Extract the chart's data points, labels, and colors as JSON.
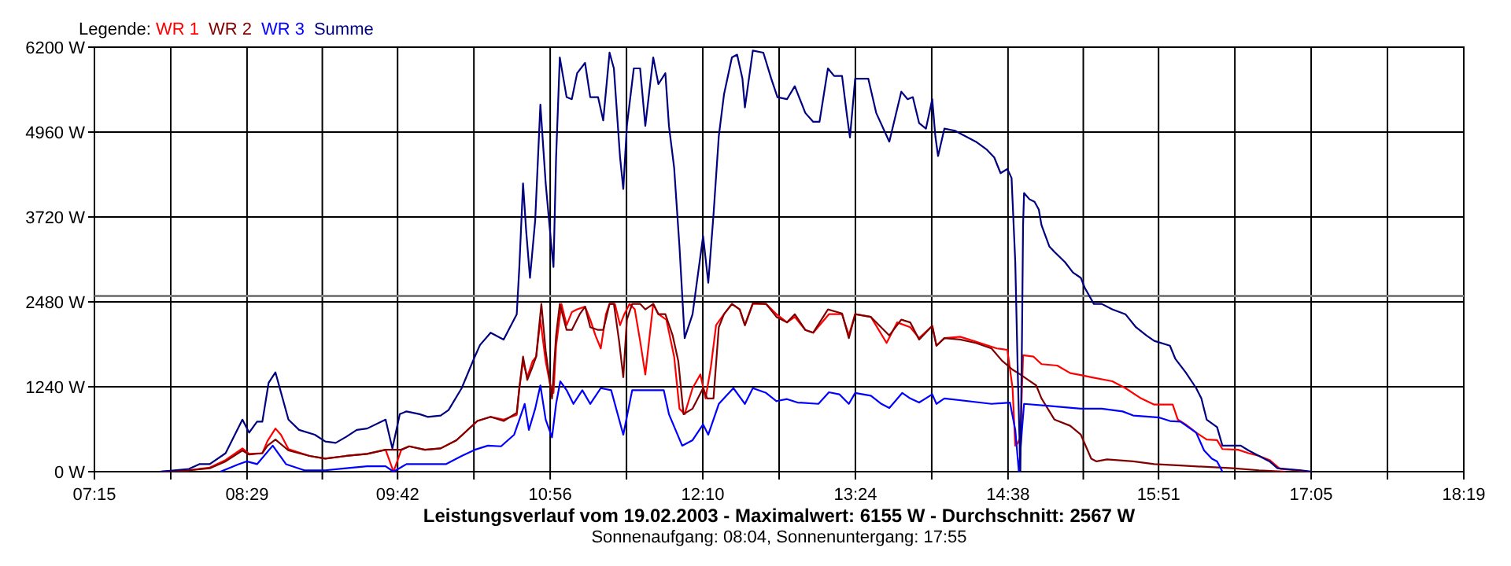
{
  "chart_data": {
    "type": "line",
    "title": "Leistungsverlauf vom 19.02.2003 - Maximalwert: 6155 W - Durchschnitt: 2567 W",
    "subtitle": "Sonnenaufgang: 08:04, Sonnenuntergang: 17:55",
    "legend_title": "Legende:",
    "legend": "top left",
    "grid": true,
    "marker": "none",
    "line_style": "solid",
    "xlim": [
      7.25,
      18.3167
    ],
    "xticks": [
      {
        "value": 7.25,
        "label": "07:15"
      },
      {
        "value": 7.8667,
        "label": null
      },
      {
        "value": 8.4833,
        "label": "08:29"
      },
      {
        "value": 9.0917,
        "label": null
      },
      {
        "value": 9.7,
        "label": "09:42"
      },
      {
        "value": 10.3167,
        "label": null
      },
      {
        "value": 10.9333,
        "label": "10:56"
      },
      {
        "value": 11.55,
        "label": null
      },
      {
        "value": 12.1667,
        "label": "12:10"
      },
      {
        "value": 12.7833,
        "label": null
      },
      {
        "value": 13.4,
        "label": "13:24"
      },
      {
        "value": 14.0167,
        "label": null
      },
      {
        "value": 14.6333,
        "label": "14:38"
      },
      {
        "value": 15.2417,
        "label": null
      },
      {
        "value": 15.85,
        "label": "15:51"
      },
      {
        "value": 16.4667,
        "label": null
      },
      {
        "value": 17.0833,
        "label": "17:05"
      },
      {
        "value": 17.7,
        "label": null
      },
      {
        "value": 18.3167,
        "label": "18:19"
      }
    ],
    "ylim": [
      0,
      6200
    ],
    "yticks": [
      {
        "value": 0,
        "label": "0 W"
      },
      {
        "value": 1240,
        "label": "1240 W"
      },
      {
        "value": 2480,
        "label": "2480 W"
      },
      {
        "value": 3720,
        "label": "3720 W"
      },
      {
        "value": 4960,
        "label": "4960 W"
      },
      {
        "value": 6200,
        "label": "6200 W"
      }
    ],
    "ref_lines": [
      {
        "axis": "y",
        "value": 2567,
        "color": "#808080"
      }
    ],
    "series": [
      {
        "name": "WR 1",
        "color": "#ff0000",
        "x": [
          7.78,
          8.013,
          8.182,
          8.31,
          8.446,
          8.5,
          8.607,
          8.649,
          8.713,
          8.757,
          8.818,
          8.989,
          9.116,
          9.285,
          9.454,
          9.603,
          9.667,
          9.73,
          9.794,
          9.921,
          10.048,
          10.176,
          10.345,
          10.452,
          10.557,
          10.663,
          10.684,
          10.714,
          10.748,
          10.79,
          10.82,
          10.854,
          10.897,
          10.939,
          10.96,
          10.981,
          11.024,
          11.066,
          11.108,
          11.151,
          11.215,
          11.257,
          11.299,
          11.342,
          11.384,
          11.413,
          11.456,
          11.498,
          11.532,
          11.575,
          11.617,
          11.66,
          11.702,
          11.766,
          11.808,
          11.872,
          11.935,
          11.978,
          12.02,
          12.084,
          12.147,
          12.189,
          12.232,
          12.274,
          12.338,
          12.402,
          12.465,
          12.507,
          12.571,
          12.678,
          12.762,
          12.847,
          12.91,
          12.995,
          13.059,
          13.186,
          13.292,
          13.347,
          13.398,
          13.525,
          13.652,
          13.737,
          13.843,
          13.915,
          14.021,
          14.055,
          14.119,
          14.246,
          14.373,
          14.543,
          14.628,
          14.67,
          14.692,
          14.713,
          14.733,
          14.755,
          14.84,
          14.904,
          15.031,
          15.136,
          15.222,
          15.306,
          15.476,
          15.582,
          15.709,
          15.815,
          15.964,
          16.006,
          16.069,
          16.154,
          16.239,
          16.323,
          16.366,
          16.493,
          16.577,
          16.662,
          16.747,
          16.832,
          17.086
        ],
        "values": [
          0,
          20,
          60,
          170,
          340,
          260,
          270,
          450,
          630,
          540,
          330,
          230,
          190,
          230,
          260,
          320,
          0,
          320,
          370,
          320,
          340,
          460,
          740,
          800,
          760,
          830,
          1220,
          1610,
          1380,
          1610,
          1680,
          2220,
          1610,
          1220,
          1150,
          1840,
          2450,
          2140,
          2330,
          2370,
          2410,
          2220,
          1990,
          1800,
          2300,
          2450,
          2450,
          2140,
          2300,
          2450,
          2370,
          1910,
          1420,
          2450,
          2300,
          2220,
          1680,
          920,
          840,
          1220,
          1420,
          1070,
          1530,
          2140,
          2300,
          2450,
          2370,
          2140,
          2450,
          2450,
          2300,
          2180,
          2260,
          2070,
          2030,
          2300,
          2300,
          1990,
          2300,
          2260,
          1880,
          2180,
          2110,
          1950,
          2130,
          1840,
          1950,
          1970,
          1900,
          1800,
          1780,
          1220,
          380,
          420,
          500,
          1700,
          1680,
          1570,
          1550,
          1440,
          1410,
          1380,
          1320,
          1220,
          1070,
          980,
          980,
          760,
          690,
          570,
          470,
          460,
          330,
          320,
          270,
          230,
          170,
          40,
          0
        ]
      },
      {
        "name": "WR 2",
        "color": "#800000",
        "x": [
          7.78,
          8.013,
          8.182,
          8.31,
          8.446,
          8.5,
          8.607,
          8.649,
          8.713,
          8.818,
          8.989,
          9.116,
          9.285,
          9.454,
          9.603,
          9.73,
          9.794,
          9.921,
          10.048,
          10.176,
          10.345,
          10.452,
          10.557,
          10.663,
          10.684,
          10.714,
          10.748,
          10.79,
          10.82,
          10.862,
          10.897,
          10.948,
          10.981,
          11.011,
          11.066,
          11.108,
          11.172,
          11.215,
          11.257,
          11.32,
          11.362,
          11.413,
          11.448,
          11.49,
          11.524,
          11.553,
          11.596,
          11.66,
          11.702,
          11.766,
          11.808,
          11.864,
          11.923,
          11.969,
          12.011,
          12.084,
          12.169,
          12.202,
          12.253,
          12.296,
          12.338,
          12.402,
          12.465,
          12.507,
          12.571,
          12.678,
          12.762,
          12.847,
          12.91,
          12.995,
          13.059,
          13.178,
          13.292,
          13.347,
          13.398,
          13.525,
          13.674,
          13.771,
          13.843,
          13.915,
          14.021,
          14.055,
          14.119,
          14.246,
          14.373,
          14.5,
          14.585,
          14.67,
          14.733,
          14.797,
          14.861,
          14.904,
          15.009,
          15.136,
          15.222,
          15.306,
          15.349,
          15.433,
          15.645,
          15.815,
          16.027,
          16.45,
          16.662,
          16.875
        ],
        "values": [
          0,
          20,
          50,
          150,
          310,
          250,
          270,
          380,
          470,
          310,
          230,
          190,
          230,
          260,
          320,
          320,
          370,
          320,
          340,
          460,
          740,
          800,
          740,
          860,
          1220,
          1680,
          1340,
          1530,
          1680,
          2450,
          1760,
          1070,
          1990,
          2450,
          2070,
          2070,
          2300,
          2410,
          2110,
          2070,
          2070,
          2450,
          2450,
          1910,
          1380,
          2220,
          2450,
          2450,
          2370,
          2450,
          2300,
          2300,
          1990,
          1610,
          840,
          920,
          1220,
          1070,
          1070,
          2110,
          2300,
          2450,
          2370,
          2140,
          2460,
          2450,
          2260,
          2180,
          2300,
          2070,
          2030,
          2370,
          2310,
          1950,
          2300,
          2260,
          1990,
          2220,
          2180,
          1930,
          2130,
          1840,
          1950,
          1930,
          1880,
          1800,
          1620,
          1490,
          1420,
          1340,
          1260,
          1070,
          760,
          670,
          540,
          190,
          150,
          180,
          150,
          110,
          90,
          50,
          20,
          0
        ]
      },
      {
        "name": "WR 3",
        "color": "#0000ff",
        "x": [
          8.268,
          8.416,
          8.48,
          8.564,
          8.691,
          8.798,
          8.946,
          9.116,
          9.285,
          9.454,
          9.603,
          9.667,
          9.772,
          10.09,
          10.218,
          10.324,
          10.43,
          10.536,
          10.642,
          10.684,
          10.727,
          10.761,
          10.812,
          10.854,
          10.897,
          10.948,
          10.981,
          11.015,
          11.066,
          11.121,
          11.193,
          11.257,
          11.342,
          11.426,
          11.524,
          11.596,
          11.851,
          11.893,
          12.0,
          12.084,
          12.169,
          12.211,
          12.296,
          12.414,
          12.507,
          12.571,
          12.678,
          12.762,
          12.847,
          12.932,
          13.101,
          13.186,
          13.27,
          13.347,
          13.398,
          13.525,
          13.61,
          13.674,
          13.779,
          13.843,
          13.915,
          14.021,
          14.055,
          14.119,
          14.5,
          14.649,
          14.692,
          14.721,
          14.746,
          14.763,
          14.967,
          15.222,
          15.391,
          15.56,
          15.645,
          15.857,
          15.942,
          16.027,
          16.154,
          16.218,
          16.281,
          16.323,
          16.366
        ],
        "values": [
          0,
          110,
          150,
          110,
          380,
          110,
          20,
          20,
          50,
          80,
          80,
          0,
          110,
          110,
          230,
          320,
          380,
          370,
          540,
          760,
          990,
          610,
          920,
          1260,
          760,
          500,
          990,
          1320,
          1190,
          990,
          1190,
          990,
          1220,
          1190,
          540,
          1190,
          1190,
          840,
          380,
          460,
          690,
          540,
          990,
          1220,
          990,
          1220,
          1150,
          1030,
          1060,
          1010,
          990,
          1160,
          1130,
          990,
          1150,
          1110,
          990,
          930,
          1150,
          1070,
          1010,
          1130,
          990,
          1070,
          990,
          1010,
          610,
          0,
          610,
          990,
          960,
          920,
          920,
          880,
          820,
          790,
          740,
          730,
          570,
          310,
          190,
          150,
          0
        ]
      },
      {
        "name": "Summe",
        "color": "#000080",
        "x": [
          7.78,
          8.013,
          8.098,
          8.182,
          8.31,
          8.446,
          8.5,
          8.564,
          8.607,
          8.658,
          8.713,
          8.818,
          8.904,
          9.031,
          9.116,
          9.2,
          9.285,
          9.37,
          9.454,
          9.603,
          9.658,
          9.718,
          9.772,
          9.879,
          9.943,
          10.048,
          10.112,
          10.218,
          10.324,
          10.366,
          10.452,
          10.557,
          10.663,
          10.684,
          10.714,
          10.739,
          10.77,
          10.812,
          10.854,
          10.897,
          10.939,
          10.96,
          10.981,
          11.011,
          11.066,
          11.108,
          11.151,
          11.215,
          11.257,
          11.32,
          11.362,
          11.413,
          11.448,
          11.498,
          11.524,
          11.553,
          11.609,
          11.66,
          11.702,
          11.766,
          11.808,
          11.864,
          11.893,
          11.935,
          11.978,
          12.02,
          12.084,
          12.169,
          12.211,
          12.253,
          12.296,
          12.338,
          12.402,
          12.444,
          12.487,
          12.507,
          12.571,
          12.656,
          12.72,
          12.77,
          12.847,
          12.91,
          12.995,
          13.059,
          13.11,
          13.178,
          13.228,
          13.292,
          13.334,
          13.356,
          13.398,
          13.504,
          13.568,
          13.674,
          13.771,
          13.822,
          13.864,
          13.915,
          13.97,
          14.021,
          14.046,
          14.068,
          14.119,
          14.204,
          14.373,
          14.458,
          14.522,
          14.573,
          14.628,
          14.662,
          14.692,
          14.713,
          14.733,
          14.746,
          14.755,
          14.763,
          14.806,
          14.848,
          14.882,
          14.904,
          14.967,
          15.009,
          15.094,
          15.158,
          15.222,
          15.255,
          15.327,
          15.391,
          15.476,
          15.582,
          15.667,
          15.751,
          15.815,
          15.942,
          15.985,
          16.069,
          16.154,
          16.196,
          16.239,
          16.323,
          16.366,
          16.514,
          16.577,
          16.662,
          16.747,
          16.811,
          17.002,
          17.086
        ],
        "values": [
          0,
          40,
          110,
          110,
          270,
          760,
          570,
          730,
          730,
          1300,
          1450,
          760,
          610,
          540,
          440,
          420,
          510,
          610,
          630,
          760,
          340,
          840,
          880,
          840,
          800,
          820,
          900,
          1220,
          1680,
          1850,
          2030,
          1930,
          2300,
          2990,
          4210,
          3520,
          2830,
          3670,
          5360,
          4210,
          3370,
          2990,
          4590,
          6050,
          5470,
          5440,
          5820,
          5970,
          5470,
          5470,
          5130,
          6120,
          5890,
          4590,
          4130,
          5050,
          5890,
          5890,
          5050,
          6050,
          5660,
          5820,
          5050,
          4440,
          3290,
          1950,
          2300,
          3440,
          2760,
          3750,
          4900,
          5510,
          6050,
          6090,
          5740,
          5320,
          6150,
          6120,
          5740,
          5470,
          5440,
          5630,
          5240,
          5110,
          5110,
          5890,
          5780,
          5780,
          5170,
          4880,
          5740,
          5740,
          5240,
          4820,
          5550,
          5440,
          5470,
          5090,
          5010,
          5440,
          4900,
          4610,
          5010,
          4980,
          4820,
          4710,
          4590,
          4360,
          4420,
          4290,
          3060,
          1380,
          0,
          1910,
          3600,
          4070,
          3980,
          3940,
          3830,
          3600,
          3290,
          3210,
          3060,
          2910,
          2830,
          2680,
          2450,
          2450,
          2370,
          2300,
          2110,
          1990,
          1910,
          1840,
          1650,
          1450,
          1220,
          1070,
          760,
          650,
          380,
          380,
          310,
          230,
          150,
          50,
          20,
          0
        ]
      }
    ]
  }
}
